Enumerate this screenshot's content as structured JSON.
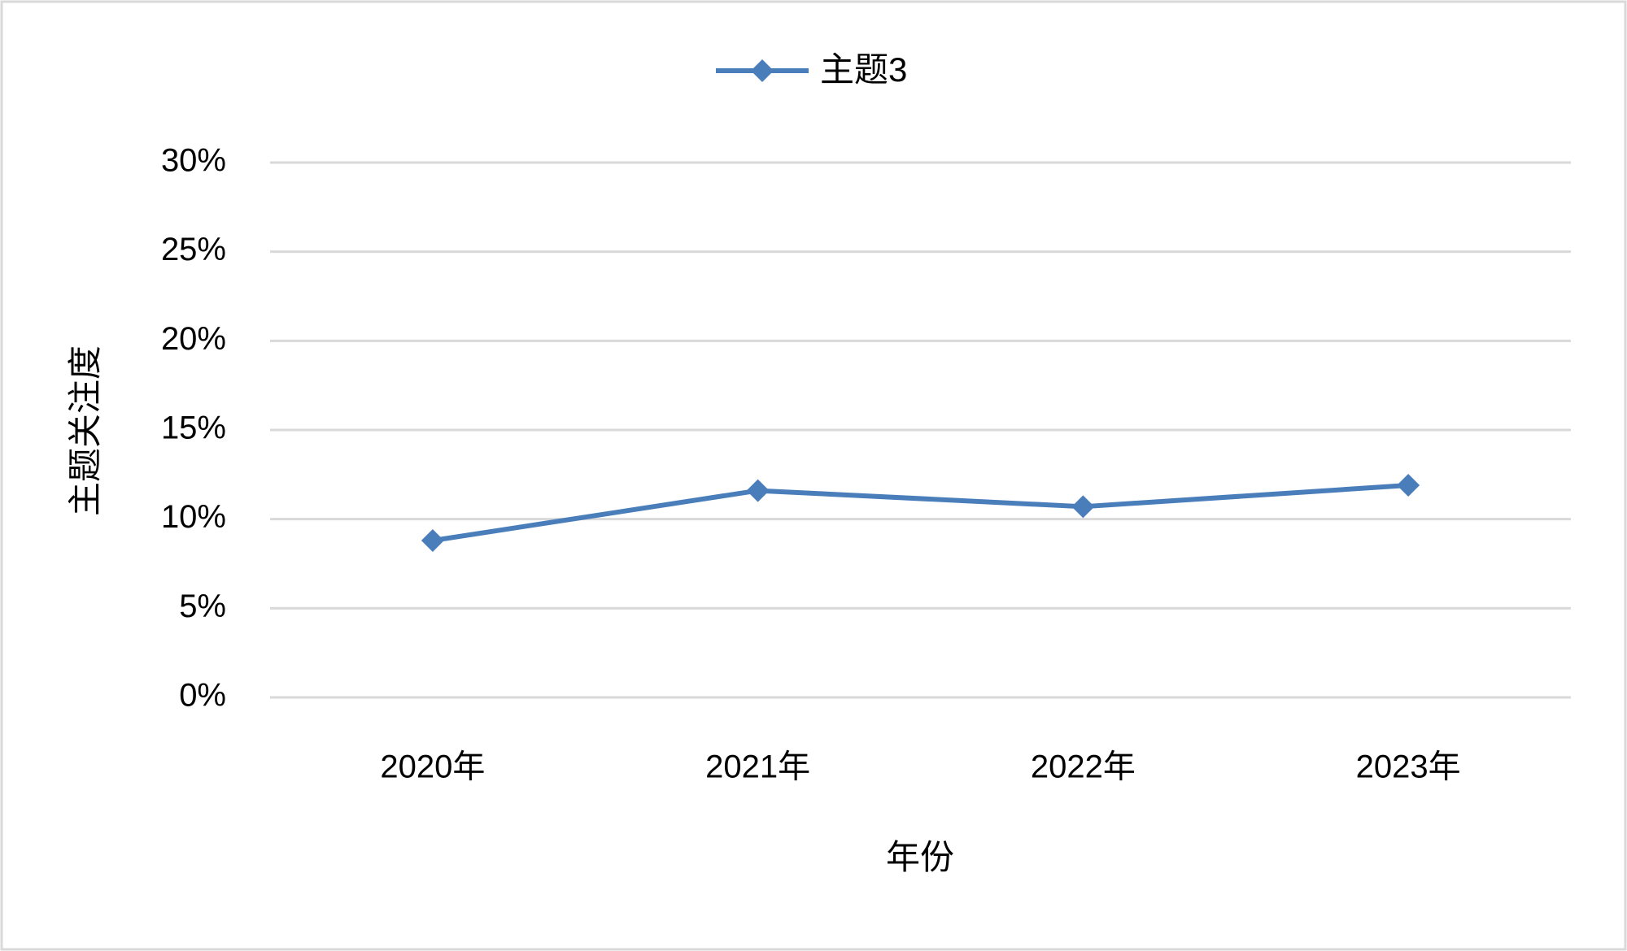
{
  "chart_data": {
    "type": "line",
    "x_label": "年份",
    "y_label": "主题关注度",
    "categories": [
      "2020年",
      "2021年",
      "2022年",
      "2023年"
    ],
    "series": [
      {
        "name": "主题3",
        "color": "#4a7ebb",
        "values": [
          8.8,
          11.6,
          10.7,
          11.9
        ]
      }
    ],
    "ylim": [
      0,
      30
    ],
    "yticks": [
      {
        "value": 0,
        "label": "0%"
      },
      {
        "value": 5,
        "label": "5%"
      },
      {
        "value": 10,
        "label": "10%"
      },
      {
        "value": 15,
        "label": "15%"
      },
      {
        "value": 20,
        "label": "20%"
      },
      {
        "value": 25,
        "label": "25%"
      },
      {
        "value": 30,
        "label": "30%"
      }
    ],
    "grid": true,
    "legend": "top"
  }
}
